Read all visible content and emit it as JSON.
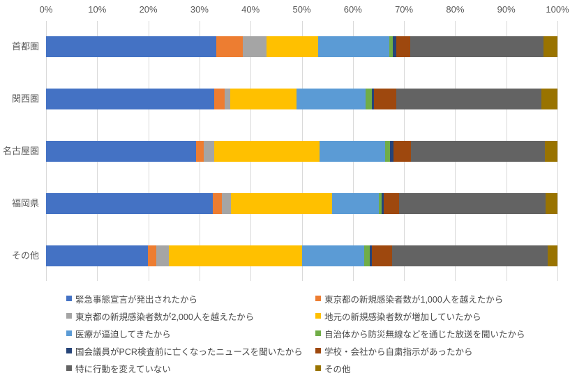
{
  "chart_data": {
    "type": "bar",
    "subtype": "100%-stacked-horizontal",
    "title": "",
    "xlabel": "",
    "ylabel": "",
    "xlim": [
      0,
      100
    ],
    "grid": true,
    "legend_position": "bottom",
    "x_ticks": [
      "0%",
      "10%",
      "20%",
      "30%",
      "40%",
      "50%",
      "60%",
      "70%",
      "80%",
      "90%",
      "100%"
    ],
    "categories": [
      "首都圏",
      "関西圏",
      "名古屋圏",
      "福岡県",
      "その他"
    ],
    "series": [
      {
        "name": "緊急事態宣言が発出されたから",
        "color": "#4472C4",
        "values": [
          33.3,
          32.9,
          29.3,
          32.6,
          19.9
        ]
      },
      {
        "name": "東京都の新規感染者数が1,000人を越えたから",
        "color": "#ED7D31",
        "values": [
          5.2,
          2.0,
          1.6,
          1.8,
          1.6
        ]
      },
      {
        "name": "東京都の新規感染者数が2,000人を越えたから",
        "color": "#A5A5A5",
        "values": [
          4.6,
          1.1,
          2.0,
          1.8,
          2.5
        ]
      },
      {
        "name": "地元の新規感染者数が増加していたから",
        "color": "#FFC000",
        "values": [
          10.1,
          13.0,
          20.6,
          19.8,
          26.1
        ]
      },
      {
        "name": "医療が逼迫してきたから",
        "color": "#5B9BD5",
        "values": [
          13.9,
          13.5,
          12.8,
          9.1,
          12.1
        ]
      },
      {
        "name": "自治体から防災無線などを通じた放送を聞いたから",
        "color": "#70AD47",
        "values": [
          0.7,
          1.2,
          1.0,
          0.5,
          1.1
        ]
      },
      {
        "name": "国会議員がPCR検査前に亡くなったニュースを聞いたから",
        "color": "#264478",
        "values": [
          0.7,
          0.4,
          0.7,
          0.5,
          0.4
        ]
      },
      {
        "name": "学校・会社から自粛指示があったから",
        "color": "#9E480E",
        "values": [
          2.7,
          4.4,
          3.4,
          3.0,
          4.0
        ]
      },
      {
        "name": "特に行動を変えていない",
        "color": "#636363",
        "values": [
          26.1,
          28.4,
          26.1,
          28.6,
          30.4
        ]
      },
      {
        "name": "その他",
        "color": "#997300",
        "values": [
          2.7,
          3.1,
          2.5,
          2.3,
          1.9
        ]
      }
    ]
  }
}
